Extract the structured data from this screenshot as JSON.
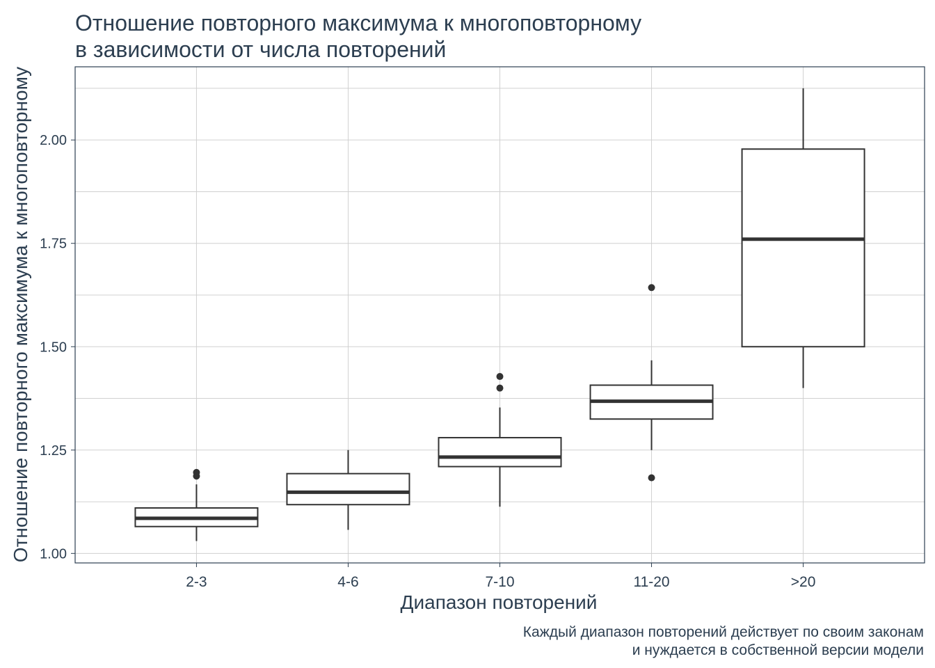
{
  "chart_data": {
    "type": "boxplot",
    "title": "Отношение повторного максимума к многоповторному\nв зависимости от числа повторений",
    "xlabel": "Диапазон повторений",
    "ylabel": "Отношение повторного максимума к многоповторному",
    "caption": "Каждый диапазон повторений действует по своим законам\nи нуждается в собственной версии модели",
    "categories": [
      "2-3",
      "4-6",
      "7-10",
      "11-20",
      ">20"
    ],
    "y_ticks": [
      1.0,
      1.25,
      1.5,
      1.75,
      2.0
    ],
    "y_tick_labels": [
      "1.00",
      "1.25",
      "1.50",
      "1.75",
      "2.00"
    ],
    "ylim": [
      0.977,
      2.177
    ],
    "grid": true,
    "boxes": [
      {
        "category": "2-3",
        "whisker_low": 1.03,
        "q1": 1.065,
        "median": 1.085,
        "q3": 1.11,
        "whisker_high": 1.167,
        "outliers": [
          1.187,
          1.196
        ]
      },
      {
        "category": "4-6",
        "whisker_low": 1.057,
        "q1": 1.118,
        "median": 1.148,
        "q3": 1.193,
        "whisker_high": 1.25,
        "outliers": []
      },
      {
        "category": "7-10",
        "whisker_low": 1.113,
        "q1": 1.21,
        "median": 1.233,
        "q3": 1.28,
        "whisker_high": 1.353,
        "outliers": [
          1.4,
          1.428
        ]
      },
      {
        "category": "11-20",
        "whisker_low": 1.25,
        "q1": 1.325,
        "median": 1.368,
        "q3": 1.407,
        "whisker_high": 1.467,
        "outliers": [
          1.183,
          1.643
        ]
      },
      {
        "category": ">20",
        "whisker_low": 1.4,
        "q1": 1.5,
        "median": 1.76,
        "q3": 1.978,
        "whisker_high": 2.125,
        "outliers": []
      }
    ],
    "colors": {
      "text": "#2c3e50",
      "box_line": "#333333",
      "grid": "#d0d0d0",
      "panel_border": "#2c3e50"
    }
  }
}
